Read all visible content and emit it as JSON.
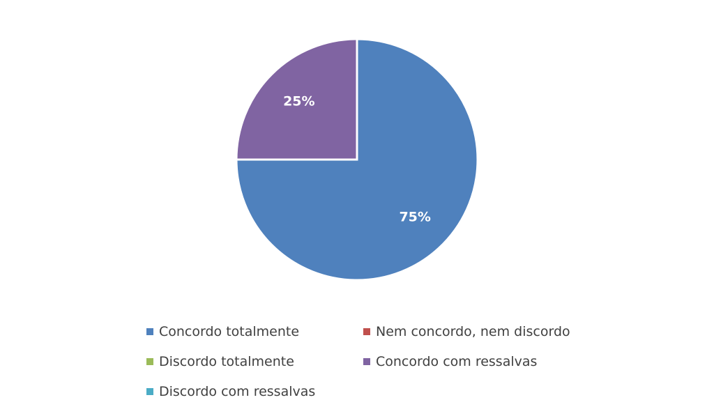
{
  "chart_data": {
    "type": "pie",
    "title": "",
    "categories": [
      "Concordo totalmente",
      "Nem concordo, nem discordo",
      "Discordo totalmente",
      "Concordo com ressalvas",
      "Discordo com ressalvas"
    ],
    "values": [
      75,
      0,
      0,
      25,
      0
    ],
    "data_labels": [
      "75%",
      "",
      "",
      "25%",
      ""
    ],
    "colors": [
      "#4f81bd",
      "#c0504d",
      "#9bbb59",
      "#8064a2",
      "#4bacc6"
    ],
    "legend_position": "bottom",
    "start_angle": "12 o'clock, clockwise"
  }
}
